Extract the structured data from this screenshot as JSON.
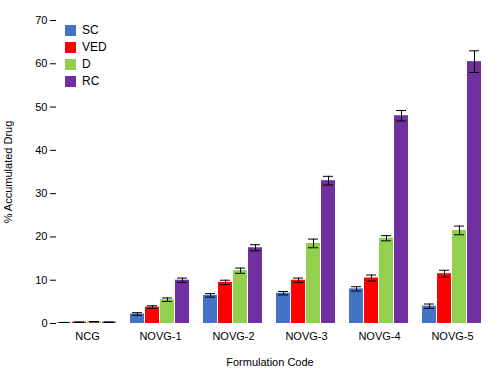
{
  "chart_data": {
    "type": "bar",
    "xlabel": "Formulation Code",
    "ylabel": "% Accumulated Drug",
    "categories": [
      "NCG",
      "NOVG-1",
      "NOVG-2",
      "NOVG-3",
      "NOVG-4",
      "NOVG-5"
    ],
    "series": [
      {
        "name": "SC",
        "color": "#4472C4",
        "values": [
          0.2,
          2.2,
          6.5,
          7.0,
          8.0,
          4.0
        ],
        "errors": [
          0.05,
          0.3,
          0.4,
          0.4,
          0.5,
          0.5
        ]
      },
      {
        "name": "VED",
        "color": "#FF0000",
        "values": [
          0.3,
          3.8,
          9.5,
          10.0,
          10.5,
          11.5
        ],
        "errors": [
          0.05,
          0.3,
          0.5,
          0.5,
          0.7,
          0.8
        ]
      },
      {
        "name": "D",
        "color": "#92D050",
        "values": [
          0.4,
          5.5,
          12.2,
          18.5,
          19.7,
          21.5
        ],
        "errors": [
          0.05,
          0.4,
          0.6,
          1.0,
          0.6,
          1.0
        ]
      },
      {
        "name": "RC",
        "color": "#7030A0",
        "values": [
          0.3,
          10.0,
          17.5,
          33.0,
          48.0,
          60.5
        ],
        "errors": [
          0.05,
          0.5,
          0.7,
          1.0,
          1.2,
          2.5
        ]
      }
    ],
    "ylim": [
      0,
      70
    ],
    "yticks": [
      0,
      10,
      20,
      30,
      40,
      50,
      60,
      70
    ],
    "grid": false,
    "legend": "upper left"
  }
}
